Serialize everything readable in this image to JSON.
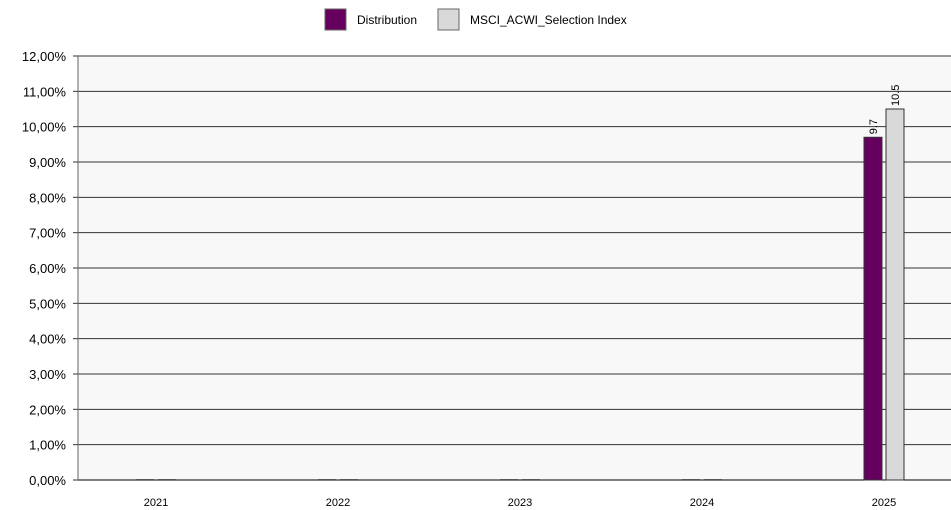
{
  "chart_data": {
    "type": "bar",
    "categories": [
      "2021",
      "2022",
      "2023",
      "2024",
      "2025"
    ],
    "series": [
      {
        "name": "Distribution",
        "color": "#66005f",
        "values": [
          0,
          0,
          0,
          0,
          9.7
        ],
        "labels": [
          "",
          "",
          "",
          "",
          "9.7"
        ]
      },
      {
        "name": "MSCI_ACWI_Selection Index",
        "color": "#d9d9d9",
        "values": [
          0,
          0,
          0,
          0,
          10.5
        ],
        "labels": [
          "",
          "",
          "",
          "",
          "10.5"
        ]
      }
    ],
    "ylim": [
      0,
      12
    ],
    "yticks": [
      "0,00%",
      "1,00%",
      "2,00%",
      "3,00%",
      "4,00%",
      "5,00%",
      "6,00%",
      "7,00%",
      "8,00%",
      "9,00%",
      "10,00%",
      "11,00%",
      "12,00%"
    ],
    "grid": true,
    "legend_position": "top-center",
    "plot_background": "#f8f8f8"
  }
}
